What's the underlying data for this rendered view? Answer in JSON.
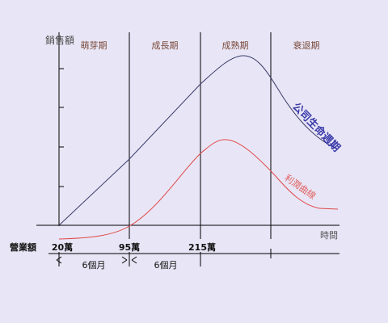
{
  "y_axis_label": "銷售額",
  "x_axis_label": "時間",
  "phases": [
    "萌芽期",
    "成長期",
    "成熟期",
    "衰退期"
  ],
  "revenue_label": "營業額",
  "milestones": [
    "20萬",
    "95萬",
    "215萬"
  ],
  "durations": [
    "6個月",
    "6個月"
  ],
  "curves": {
    "lifecycle": {
      "label": "公司生命週期",
      "color": "#3a3a6a"
    },
    "profit": {
      "label": "利潤曲線",
      "color": "#e04848"
    }
  }
}
